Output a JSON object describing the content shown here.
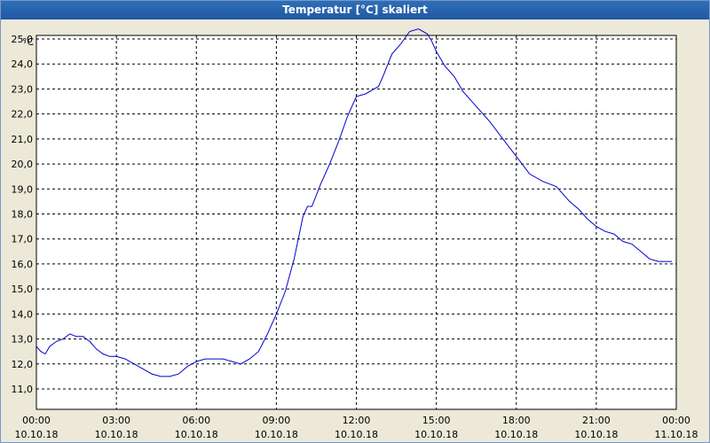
{
  "window": {
    "title": "Temperatur [°C] skaliert"
  },
  "chart_data": {
    "type": "line",
    "title": "Temperatur [°C] skaliert",
    "ylabel": "°C",
    "xlabel": "",
    "ylim": [
      11.0,
      25.0
    ],
    "y_ticks": [
      "11,0",
      "12,0",
      "13,0",
      "14,0",
      "15,0",
      "16,0",
      "17,0",
      "18,0",
      "19,0",
      "20,0",
      "21,0",
      "22,0",
      "23,0",
      "24,0",
      "25,0"
    ],
    "x_ticks": [
      {
        "time": "00:00",
        "date": "10.10.18"
      },
      {
        "time": "03:00",
        "date": "10.10.18"
      },
      {
        "time": "06:00",
        "date": "10.10.18"
      },
      {
        "time": "09:00",
        "date": "10.10.18"
      },
      {
        "time": "12:00",
        "date": "10.10.18"
      },
      {
        "time": "15:00",
        "date": "10.10.18"
      },
      {
        "time": "18:00",
        "date": "10.10.18"
      },
      {
        "time": "21:00",
        "date": "10.10.18"
      },
      {
        "time": "00:00",
        "date": "11.10.18"
      }
    ],
    "grid": true,
    "line_color": "#0000cc",
    "series": [
      {
        "x": [
          "2018-10-10 00:00",
          "2018-10-10 00:10",
          "2018-10-10 00:20",
          "2018-10-10 00:30",
          "2018-10-10 00:45",
          "2018-10-10 01:00",
          "2018-10-10 01:15",
          "2018-10-10 01:30",
          "2018-10-10 01:45",
          "2018-10-10 02:00",
          "2018-10-10 02:15",
          "2018-10-10 02:30",
          "2018-10-10 02:45",
          "2018-10-10 03:00",
          "2018-10-10 03:20",
          "2018-10-10 03:40",
          "2018-10-10 04:00",
          "2018-10-10 04:20",
          "2018-10-10 04:40",
          "2018-10-10 05:00",
          "2018-10-10 05:20",
          "2018-10-10 05:40",
          "2018-10-10 06:00",
          "2018-10-10 06:20",
          "2018-10-10 06:40",
          "2018-10-10 07:00",
          "2018-10-10 07:20",
          "2018-10-10 07:40",
          "2018-10-10 08:00",
          "2018-10-10 08:20",
          "2018-10-10 08:40",
          "2018-10-10 09:00",
          "2018-10-10 09:20",
          "2018-10-10 09:40",
          "2018-10-10 10:00",
          "2018-10-10 10:10",
          "2018-10-10 10:20",
          "2018-10-10 10:40",
          "2018-10-10 11:00",
          "2018-10-10 11:20",
          "2018-10-10 11:40",
          "2018-10-10 12:00",
          "2018-10-10 12:20",
          "2018-10-10 12:40",
          "2018-10-10 12:50",
          "2018-10-10 13:00",
          "2018-10-10 13:20",
          "2018-10-10 13:40",
          "2018-10-10 14:00",
          "2018-10-10 14:20",
          "2018-10-10 14:40",
          "2018-10-10 14:50",
          "2018-10-10 15:00",
          "2018-10-10 15:10",
          "2018-10-10 15:20",
          "2018-10-10 15:40",
          "2018-10-10 16:00",
          "2018-10-10 16:30",
          "2018-10-10 17:00",
          "2018-10-10 17:30",
          "2018-10-10 18:00",
          "2018-10-10 18:30",
          "2018-10-10 19:00",
          "2018-10-10 19:30",
          "2018-10-10 19:50",
          "2018-10-10 20:00",
          "2018-10-10 20:20",
          "2018-10-10 20:40",
          "2018-10-10 21:00",
          "2018-10-10 21:20",
          "2018-10-10 21:40",
          "2018-10-10 22:00",
          "2018-10-10 22:20",
          "2018-10-10 22:40",
          "2018-10-10 23:00",
          "2018-10-10 23:20",
          "2018-10-10 23:40",
          "2018-10-10 23:50"
        ],
        "y": [
          12.7,
          12.5,
          12.4,
          12.7,
          12.9,
          13.0,
          13.2,
          13.1,
          13.1,
          12.9,
          12.6,
          12.4,
          12.3,
          12.3,
          12.2,
          12.0,
          11.8,
          11.6,
          11.5,
          11.5,
          11.6,
          11.9,
          12.1,
          12.2,
          12.2,
          12.2,
          12.1,
          12.0,
          12.2,
          12.5,
          13.2,
          14.0,
          14.9,
          16.2,
          17.9,
          18.3,
          18.3,
          19.2,
          20.0,
          20.9,
          21.9,
          22.7,
          22.8,
          23.0,
          23.1,
          23.5,
          24.4,
          24.8,
          25.3,
          25.4,
          25.2,
          24.9,
          24.5,
          24.2,
          23.9,
          23.5,
          22.9,
          22.3,
          21.7,
          21.0,
          20.3,
          19.6,
          19.3,
          19.1,
          18.7,
          18.5,
          18.2,
          17.8,
          17.5,
          17.3,
          17.2,
          16.9,
          16.8,
          16.5,
          16.2,
          16.1,
          16.1,
          16.1
        ]
      }
    ]
  }
}
